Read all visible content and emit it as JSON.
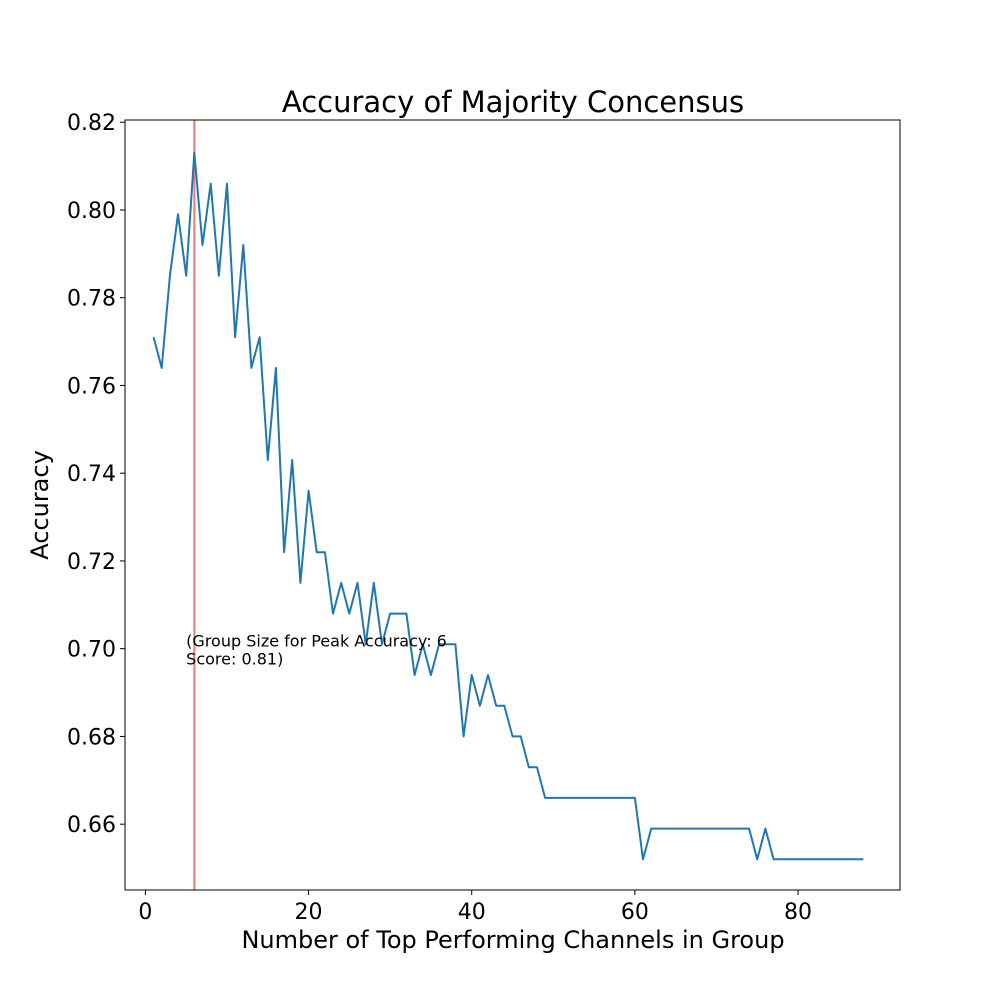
{
  "chart_data": {
    "type": "line",
    "title": "Accuracy of Majority Concensus",
    "xlabel": "Number of Top Performing Channels in Group",
    "ylabel": "Accuracy",
    "xlim": [
      -2.5,
      92.5
    ],
    "ylim": [
      0.645,
      0.8205
    ],
    "xticks": [
      0,
      20,
      40,
      60,
      80
    ],
    "xtick_labels": [
      "0",
      "20",
      "40",
      "60",
      "80"
    ],
    "yticks": [
      0.66,
      0.68,
      0.7,
      0.72,
      0.74,
      0.76,
      0.78,
      0.8,
      0.82
    ],
    "ytick_labels": [
      "0.66",
      "0.68",
      "0.70",
      "0.72",
      "0.74",
      "0.76",
      "0.78",
      "0.80",
      "0.82"
    ],
    "grid": false,
    "series": [
      {
        "color": "#1f77b4",
        "x": [
          1,
          2,
          3,
          4,
          5,
          6,
          7,
          8,
          9,
          10,
          11,
          12,
          13,
          14,
          15,
          16,
          17,
          18,
          19,
          20,
          21,
          22,
          23,
          24,
          25,
          26,
          27,
          28,
          29,
          30,
          31,
          32,
          33,
          34,
          35,
          36,
          37,
          38,
          39,
          40,
          41,
          42,
          43,
          44,
          45,
          46,
          47,
          48,
          49,
          50,
          51,
          52,
          53,
          54,
          55,
          56,
          57,
          58,
          59,
          60,
          61,
          62,
          63,
          64,
          65,
          66,
          67,
          68,
          69,
          70,
          71,
          72,
          73,
          74,
          75,
          76,
          77,
          78,
          79,
          80,
          81,
          82,
          83,
          84,
          85,
          86,
          87,
          88
        ],
        "y": [
          0.771,
          0.764,
          0.785,
          0.799,
          0.785,
          0.813,
          0.792,
          0.806,
          0.785,
          0.806,
          0.771,
          0.792,
          0.764,
          0.771,
          0.743,
          0.764,
          0.722,
          0.743,
          0.715,
          0.736,
          0.722,
          0.722,
          0.708,
          0.715,
          0.708,
          0.715,
          0.701,
          0.715,
          0.701,
          0.708,
          0.708,
          0.708,
          0.694,
          0.701,
          0.694,
          0.701,
          0.701,
          0.701,
          0.68,
          0.694,
          0.687,
          0.694,
          0.687,
          0.687,
          0.68,
          0.68,
          0.673,
          0.673,
          0.666,
          0.666,
          0.666,
          0.666,
          0.666,
          0.666,
          0.666,
          0.666,
          0.666,
          0.666,
          0.666,
          0.666,
          0.652,
          0.659,
          0.659,
          0.659,
          0.659,
          0.659,
          0.659,
          0.659,
          0.659,
          0.659,
          0.659,
          0.659,
          0.659,
          0.659,
          0.652,
          0.659,
          0.652,
          0.652,
          0.652,
          0.652,
          0.652,
          0.652,
          0.652,
          0.652,
          0.652,
          0.652,
          0.652,
          0.652
        ]
      }
    ],
    "vline": {
      "x": 6,
      "color": "#ff0000"
    },
    "annotation": {
      "line1": "(Group Size for Peak Accuracy: 6",
      "line2": "Score: 0.81)",
      "x": 5,
      "y": 0.7005
    }
  }
}
